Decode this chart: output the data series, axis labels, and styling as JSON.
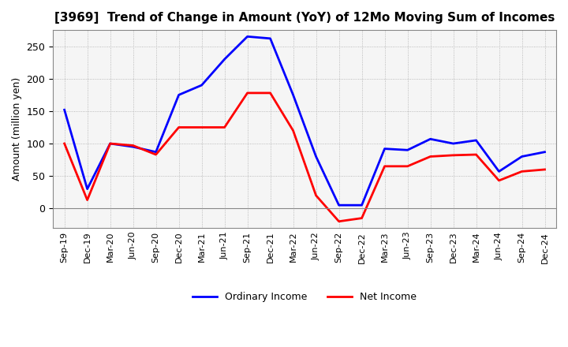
{
  "title": "[3969]  Trend of Change in Amount (YoY) of 12Mo Moving Sum of Incomes",
  "ylabel": "Amount (million yen)",
  "x_labels": [
    "Sep-19",
    "Dec-19",
    "Mar-20",
    "Jun-20",
    "Sep-20",
    "Dec-20",
    "Mar-21",
    "Jun-21",
    "Sep-21",
    "Dec-21",
    "Mar-22",
    "Jun-22",
    "Sep-22",
    "Dec-22",
    "Mar-23",
    "Jun-23",
    "Sep-23",
    "Dec-23",
    "Mar-24",
    "Jun-24",
    "Sep-24",
    "Dec-24"
  ],
  "ordinary_income": [
    152,
    30,
    100,
    95,
    87,
    175,
    190,
    230,
    265,
    262,
    175,
    80,
    5,
    5,
    92,
    90,
    107,
    100,
    105,
    57,
    80,
    87
  ],
  "net_income": [
    100,
    13,
    100,
    97,
    83,
    125,
    125,
    125,
    178,
    178,
    120,
    20,
    -20,
    -15,
    65,
    65,
    80,
    82,
    83,
    43,
    57,
    60
  ],
  "ordinary_color": "#0000ff",
  "net_color": "#ff0000",
  "ylim_min": -30,
  "ylim_max": 275,
  "yticks": [
    0,
    50,
    100,
    150,
    200,
    250
  ],
  "grid_color": "#aaaaaa",
  "background_color": "#ffffff",
  "plot_bg_color": "#f5f5f5",
  "legend_labels": [
    "Ordinary Income",
    "Net Income"
  ]
}
